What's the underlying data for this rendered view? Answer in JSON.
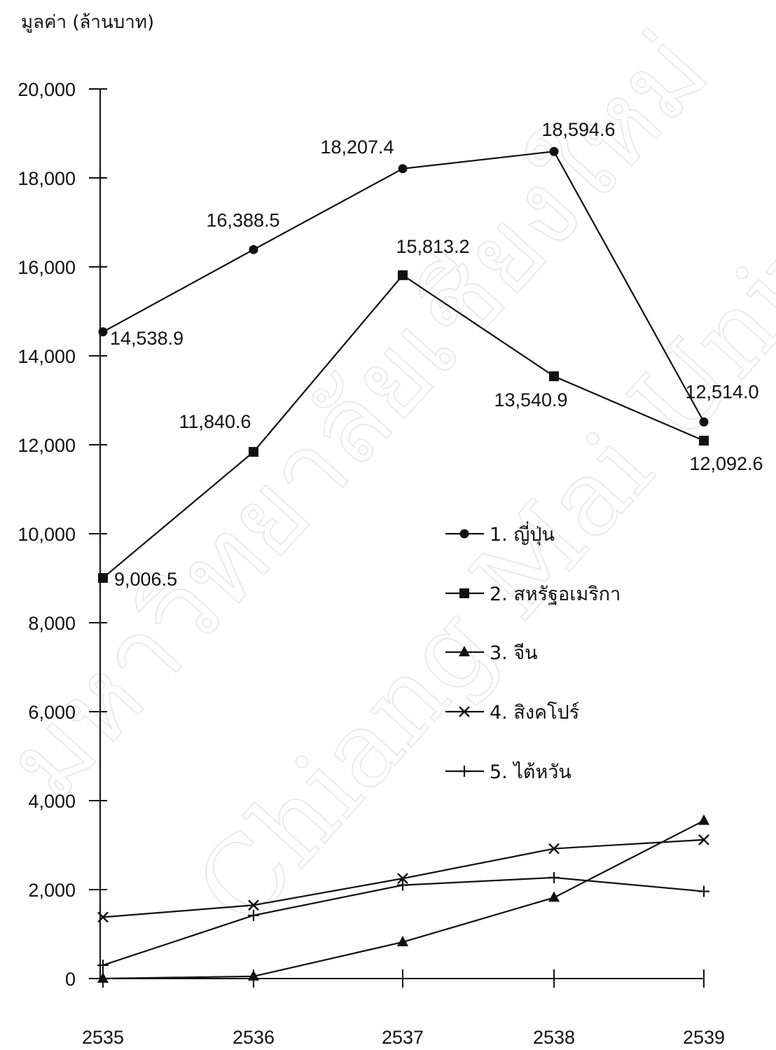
{
  "chart_data": {
    "type": "line",
    "ylabel": "มูลค่า (ล้านบาท)",
    "xlabel": "",
    "categories": [
      "2535",
      "2536",
      "2537",
      "2538",
      "2539"
    ],
    "ylim": [
      0,
      20000
    ],
    "yticks": [
      0,
      2000,
      4000,
      6000,
      8000,
      10000,
      12000,
      14000,
      16000,
      18000,
      20000
    ],
    "ytick_labels": [
      "0",
      "2,000",
      "4,000",
      "6,000",
      "8,000",
      "10,000",
      "12,000",
      "14,000",
      "16,000",
      "18,000",
      "20,000"
    ],
    "legend_position": "right-middle",
    "grid": false,
    "series": [
      {
        "name": "1. ญี่ปุ่น",
        "marker": "circle",
        "values": [
          14538.9,
          16388.5,
          18207.4,
          18594.6,
          12514.0
        ],
        "value_labels": [
          "14,538.9",
          "16,388.5",
          "18,207.4",
          "18,594.6",
          "12,514.0"
        ]
      },
      {
        "name": "2. สหรัฐอเมริกา",
        "marker": "square",
        "values": [
          9006.5,
          11840.6,
          15813.2,
          13540.9,
          12092.6
        ],
        "value_labels": [
          "9,006.5",
          "11,840.6",
          "15,813.2",
          "13,540.9",
          "12,092.6"
        ]
      },
      {
        "name": "3. จีน",
        "marker": "triangle",
        "values": [
          0,
          50,
          820,
          1820,
          3550
        ]
      },
      {
        "name": "4. สิงคโปร์",
        "marker": "x",
        "values": [
          1380,
          1650,
          2250,
          2920,
          3120
        ]
      },
      {
        "name": "5. ไต้หวัน",
        "marker": "plus",
        "values": [
          300,
          1420,
          2100,
          2270,
          1960
        ]
      }
    ],
    "watermark": [
      "Chiang Mai University",
      "มหาวิทยาลัยเชียงใหม่"
    ]
  }
}
